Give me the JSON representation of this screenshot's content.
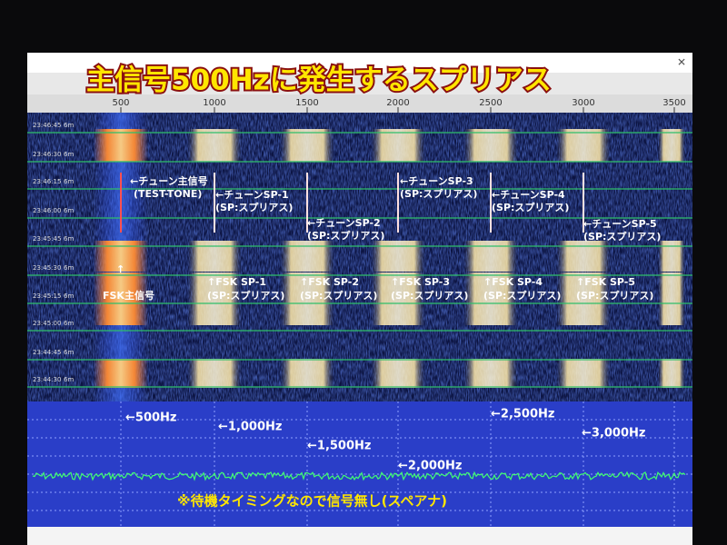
{
  "header": {
    "title": "主信号500Hzに発生するスプリアス"
  },
  "waterfall": {
    "freq_labels": [
      "500",
      "1000",
      "1500",
      "2000",
      "2500",
      "3000",
      "3500"
    ],
    "time_labels": [
      {
        "time": "23:46:45",
        "span": "6m"
      },
      {
        "time": "23:46:30",
        "span": "6m"
      },
      {
        "time": "23:46:15",
        "span": "6m"
      },
      {
        "time": "23:46:00",
        "span": "6m"
      },
      {
        "time": "23:45:45",
        "span": "6m"
      },
      {
        "time": "23:45:30",
        "span": "6m"
      },
      {
        "time": "23:45:15",
        "span": "6m"
      },
      {
        "time": "23:45:00",
        "span": "6m"
      },
      {
        "time": "23:44:45",
        "span": "6m"
      },
      {
        "time": "23:44:30",
        "span": "6m"
      }
    ],
    "tune_labels": [
      [
        "←チューン主信号",
        "(TEST-TONE)"
      ],
      [
        "←チューンSP-1",
        "(SP:スプリアス)"
      ],
      [
        "←チューンSP-2",
        "(SP:スプリアス)"
      ],
      [
        "←チューンSP-3",
        "(SP:スプリアス)"
      ],
      [
        "←チューンSP-4",
        "(SP:スプリアス)"
      ],
      [
        "←チューンSP-5",
        "(SP:スプリアス)"
      ]
    ],
    "fsk_labels": [
      [
        "↑",
        "FSK主信号"
      ],
      [
        "↑FSK SP-1",
        "(SP:スプリアス)"
      ],
      [
        "↑FSK SP-2",
        "(SP:スプリアス)"
      ],
      [
        "↑FSK SP-3",
        "(SP:スプリアス)"
      ],
      [
        "↑FSK SP-4",
        "(SP:スプリアス)"
      ],
      [
        "↑FSK SP-5",
        "(SP:スプリアス)"
      ]
    ]
  },
  "spectrum": {
    "freq_labels": [
      "←500Hz",
      "←1,000Hz",
      "←1,500Hz",
      "←2,000Hz",
      "←2,500Hz",
      "←3,000Hz"
    ],
    "note": "※待機タイミングなので信号無し(スペアナ)"
  }
}
